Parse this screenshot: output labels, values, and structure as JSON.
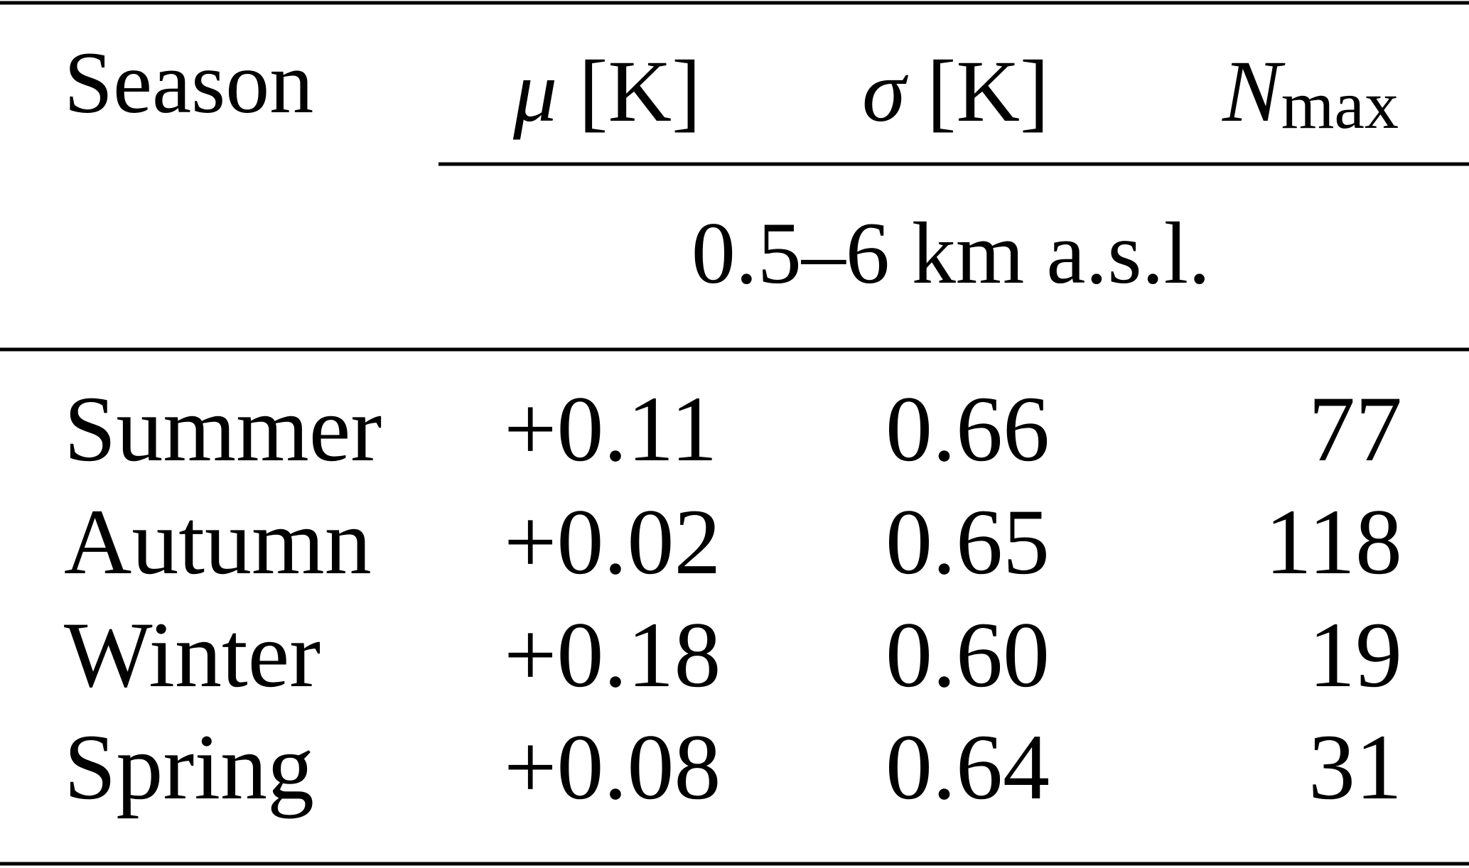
{
  "table": {
    "header": {
      "season": "Season",
      "mu": {
        "symbol": "μ",
        "unit": "[K]"
      },
      "sigma": {
        "symbol": "σ",
        "unit": "[K]"
      },
      "nmax": {
        "symbol": "N",
        "subscript": "max"
      }
    },
    "subheader": "0.5–6 km a.s.l.",
    "rows": [
      [
        "Summer",
        "+0.11",
        "0.66",
        "77"
      ],
      [
        "Autumn",
        "+0.02",
        "0.65",
        "118"
      ],
      [
        "Winter",
        "+0.18",
        "0.60",
        "19"
      ],
      [
        "Spring",
        "+0.08",
        "0.64",
        "31"
      ]
    ]
  }
}
